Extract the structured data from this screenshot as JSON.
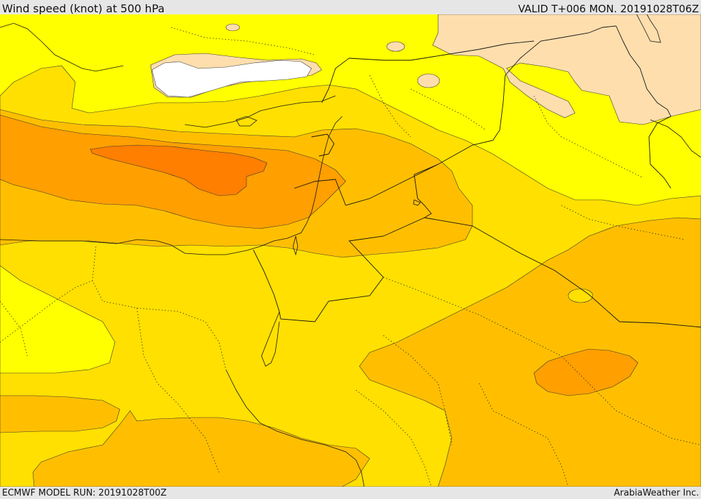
{
  "header": {
    "title": "Wind speed (knot) at 500 hPa",
    "valid": "VALID T+006 MON. 20191028T06Z"
  },
  "footer": {
    "model_run": "ECMWF MODEL RUN: 20191028T00Z",
    "credit": "ArabiaWeather Inc."
  },
  "map": {
    "field": "wind-speed-500hPa",
    "colors": {
      "white": "#ffffff",
      "peach": "#ffdead",
      "yellow": "#ffff00",
      "gold": "#ffe000",
      "amber": "#ffbf00",
      "orange": "#ff9f00",
      "dark_orange": "#ff7f00",
      "line": "#222222"
    }
  }
}
